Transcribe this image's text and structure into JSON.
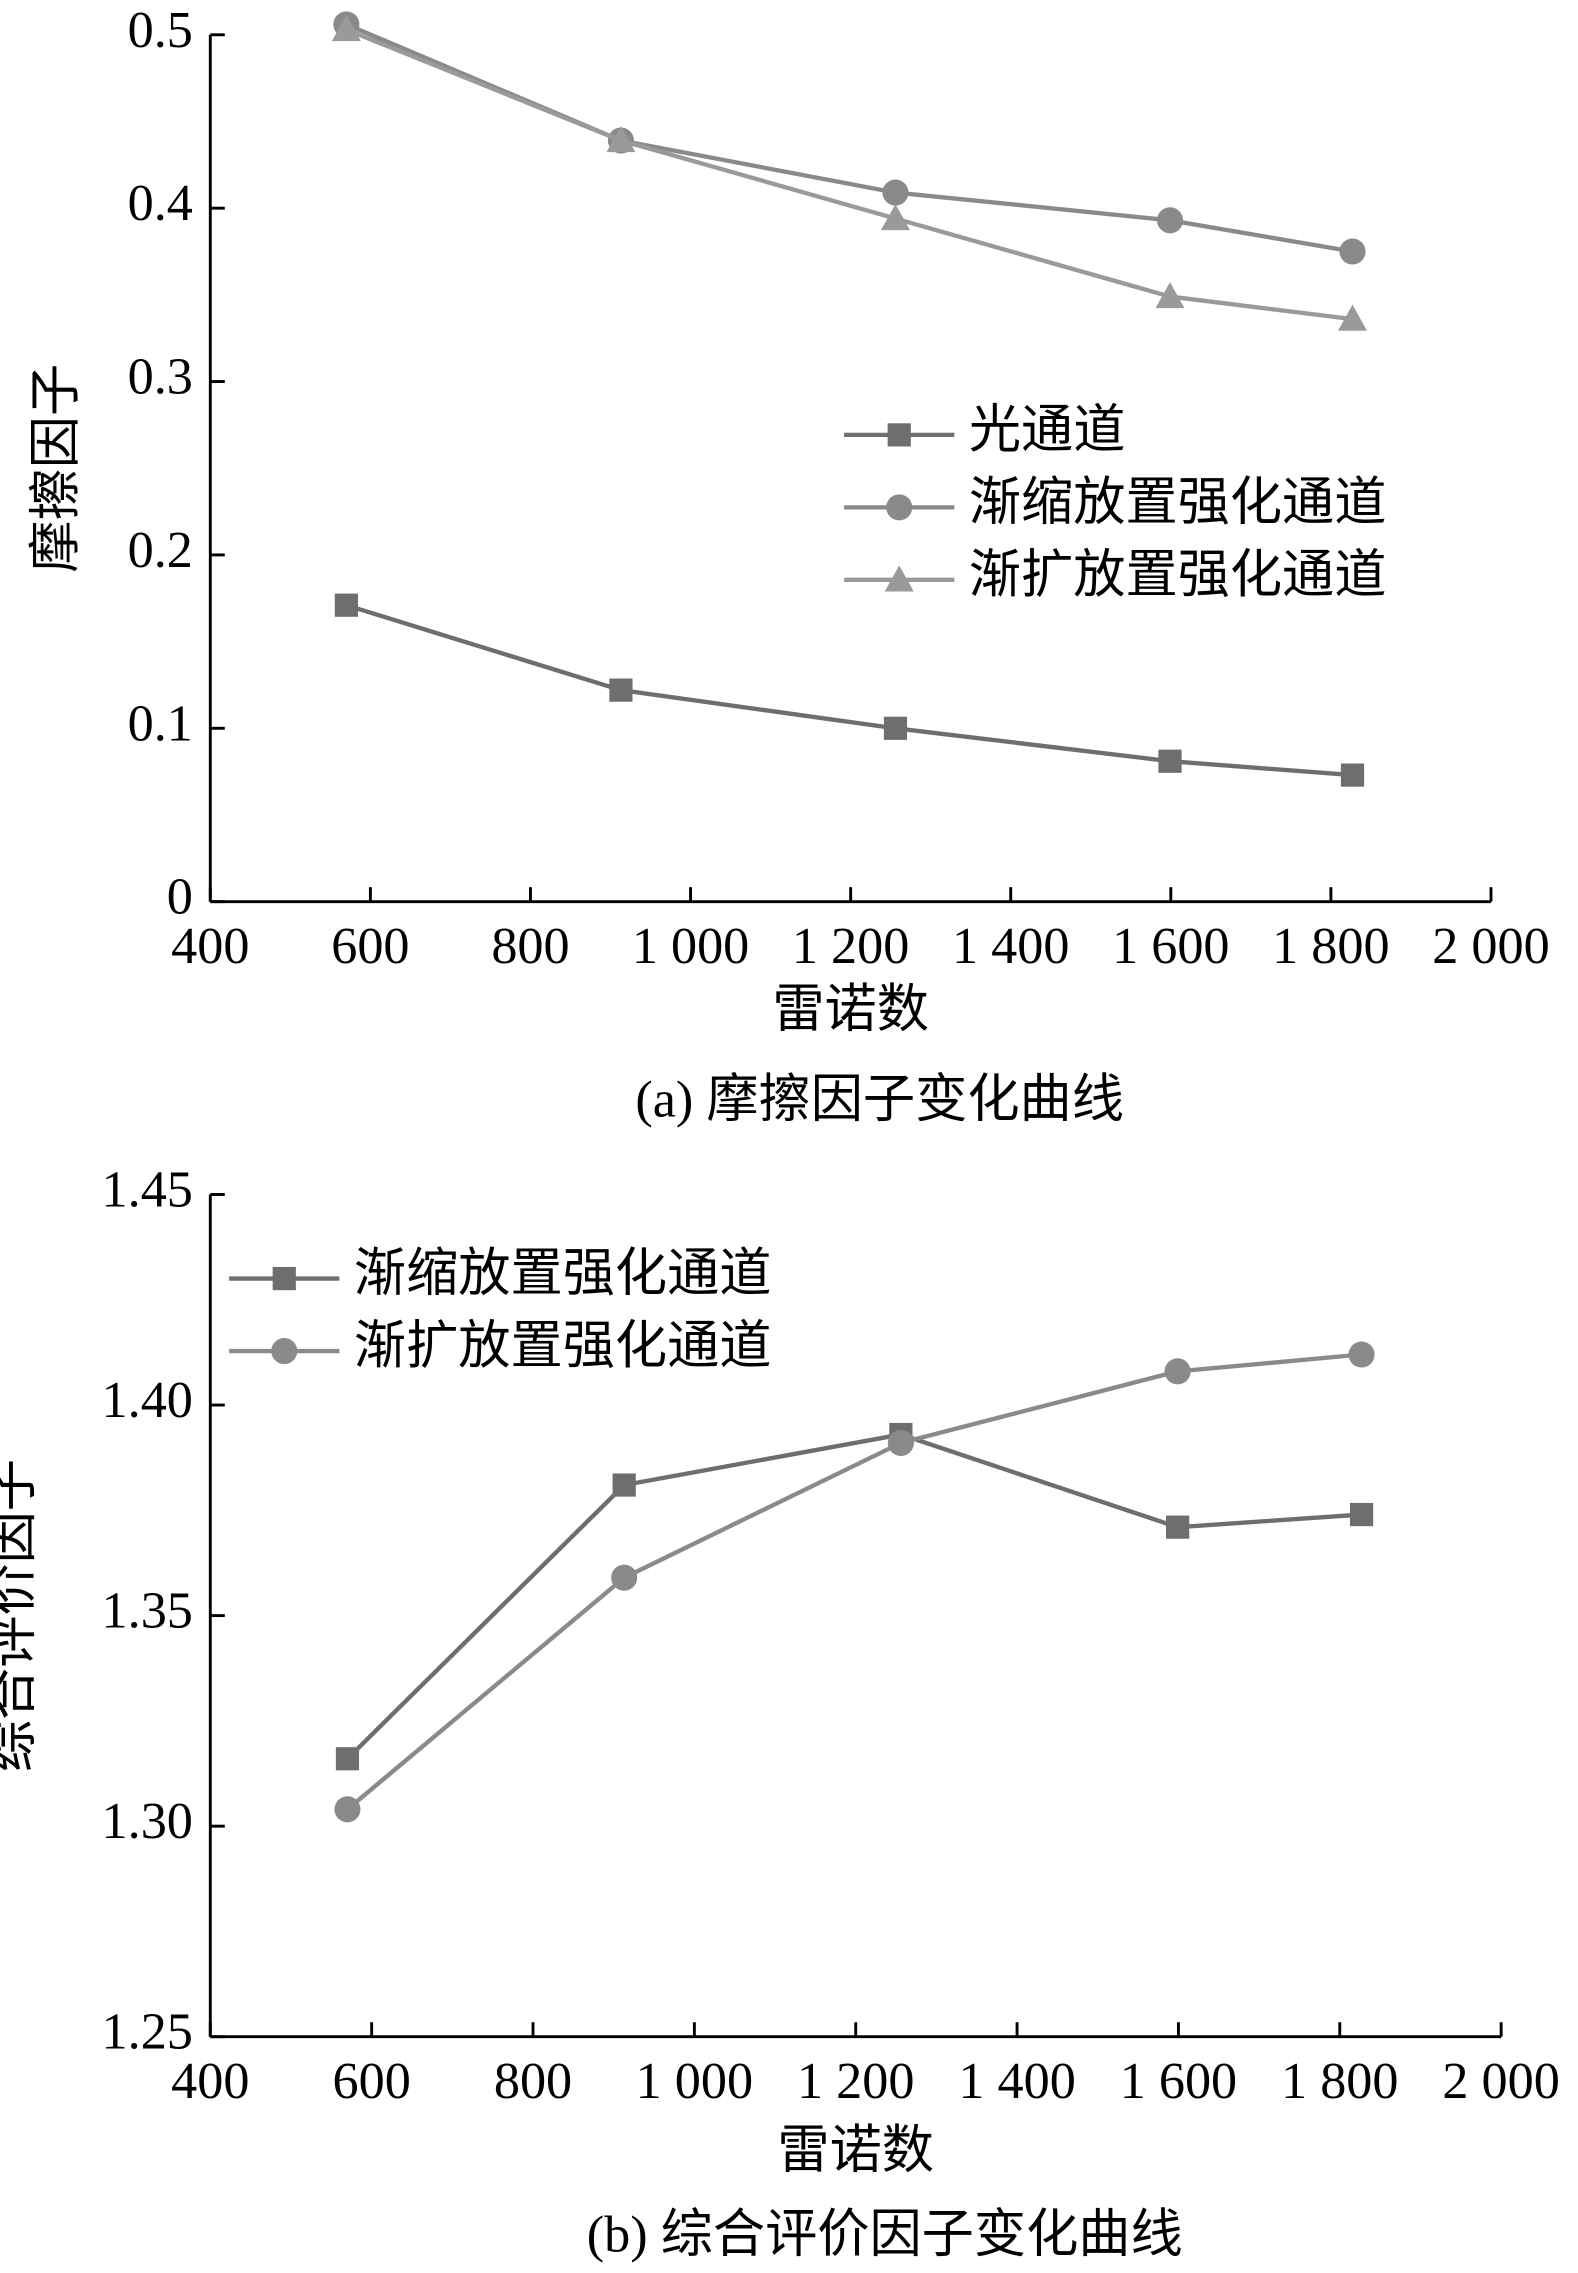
{
  "chart_data": [
    {
      "type": "line",
      "xlabel": "雷诺数",
      "ylabel": "摩擦因子",
      "caption": "(a)  摩擦因子变化曲线",
      "x": [
        570,
        913,
        1256,
        1599,
        1827
      ],
      "series": [
        {
          "name": "光通道",
          "color": "#6e6e6e",
          "marker": "square",
          "values": [
            0.171,
            0.122,
            0.1,
            0.081,
            0.073
          ]
        },
        {
          "name": "渐缩放置强化通道",
          "color": "#8a8a8a",
          "marker": "circle",
          "values": [
            0.506,
            0.439,
            0.409,
            0.393,
            0.375
          ]
        },
        {
          "name": "渐扩放置强化通道",
          "color": "#9a9a9a",
          "marker": "triangle",
          "values": [
            0.503,
            0.439,
            0.394,
            0.349,
            0.336
          ]
        }
      ],
      "xlim": [
        400,
        2000
      ],
      "xticks": [
        400,
        600,
        800,
        {
          "value": 1000,
          "label": "1 000"
        },
        {
          "value": 1200,
          "label": "1 200"
        },
        {
          "value": 1400,
          "label": "1 400"
        },
        {
          "value": 1600,
          "label": "1 600"
        },
        {
          "value": 1800,
          "label": "1 800"
        },
        {
          "value": 2000,
          "label": "2 000"
        }
      ],
      "ylim": [
        0,
        0.5
      ],
      "yticks": [
        0,
        0.1,
        0.2,
        0.3,
        0.4,
        0.5
      ],
      "legend": "center right"
    },
    {
      "type": "line",
      "xlabel": "雷诺数",
      "ylabel": "综合评价因子",
      "caption": "(b)  综合评价因子变化曲线",
      "x": [
        570,
        913,
        1256,
        1599,
        1827
      ],
      "series": [
        {
          "name": "渐缩放置强化通道",
          "color": "#6e6e6e",
          "marker": "square",
          "values": [
            1.316,
            1.381,
            1.393,
            1.371,
            1.374
          ]
        },
        {
          "name": "渐扩放置强化通道",
          "color": "#8a8a8a",
          "marker": "circle",
          "values": [
            1.304,
            1.359,
            1.391,
            1.408,
            1.412
          ]
        }
      ],
      "xlim": [
        400,
        2000
      ],
      "xticks": [
        400,
        600,
        800,
        {
          "value": 1000,
          "label": "1 000"
        },
        {
          "value": 1200,
          "label": "1 200"
        },
        {
          "value": 1400,
          "label": "1 400"
        },
        {
          "value": 1600,
          "label": "1 600"
        },
        {
          "value": 1800,
          "label": "1 800"
        },
        {
          "value": 2000,
          "label": "2 000"
        }
      ],
      "ylim": [
        1.25,
        1.45
      ],
      "yticks": [
        1.25,
        {
          "value": 1.3,
          "label": "1.30"
        },
        1.35,
        {
          "value": 1.4,
          "label": "1.40"
        },
        1.45
      ],
      "legend": "upper left"
    }
  ]
}
